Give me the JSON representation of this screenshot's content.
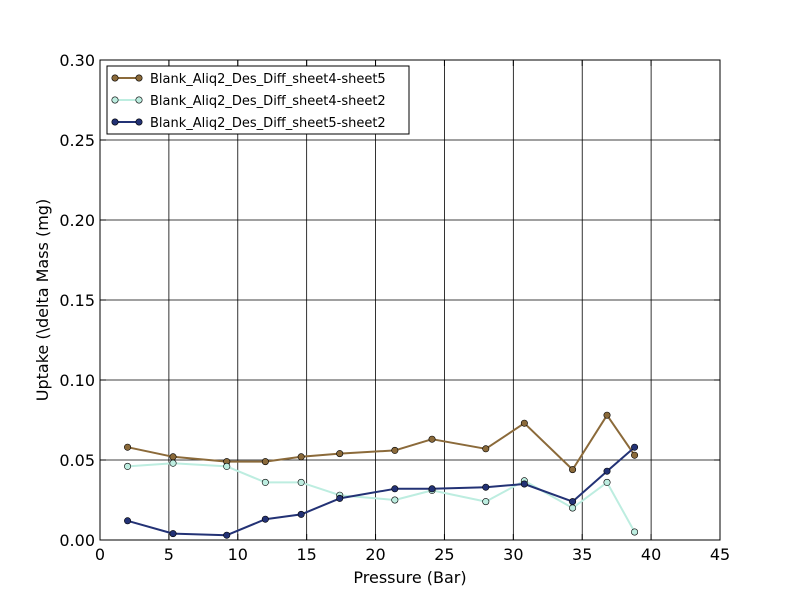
{
  "chart_data": {
    "type": "line",
    "title": "",
    "xlabel": "Pressure (Bar)",
    "ylabel": "Uptake (\\delta Mass (mg)",
    "xlim": [
      0,
      45
    ],
    "ylim": [
      0.0,
      0.3
    ],
    "xticks": [
      0,
      5,
      10,
      15,
      20,
      25,
      30,
      35,
      40,
      45
    ],
    "yticks": [
      0.0,
      0.05,
      0.1,
      0.15,
      0.2,
      0.25,
      0.3
    ],
    "xtick_labels": [
      "0",
      "5",
      "10",
      "15",
      "20",
      "25",
      "30",
      "35",
      "40",
      "45"
    ],
    "ytick_labels": [
      "0.00",
      "0.05",
      "0.10",
      "0.15",
      "0.20",
      "0.25",
      "0.30"
    ],
    "grid": true,
    "legend_position": "top-left",
    "series": [
      {
        "name": "Blank_Aliq2_Des_Diff_sheet4-sheet5",
        "color": "#8B6A3A",
        "marker_fill": "#8B6A3A",
        "x": [
          2.0,
          5.3,
          9.2,
          12.0,
          14.6,
          17.4,
          21.4,
          24.1,
          28.0,
          30.8,
          34.3,
          36.8,
          38.8
        ],
        "y": [
          0.058,
          0.052,
          0.049,
          0.049,
          0.052,
          0.054,
          0.056,
          0.063,
          0.057,
          0.073,
          0.044,
          0.078,
          0.053
        ]
      },
      {
        "name": "Blank_Aliq2_Des_Diff_sheet4-sheet2",
        "color": "#BDEDE0",
        "marker_fill": "#BDEDE0",
        "x": [
          2.0,
          5.3,
          9.2,
          12.0,
          14.6,
          17.4,
          21.4,
          24.1,
          28.0,
          30.8,
          34.3,
          36.8,
          38.8
        ],
        "y": [
          0.046,
          0.048,
          0.046,
          0.036,
          0.036,
          0.028,
          0.025,
          0.031,
          0.024,
          0.037,
          0.02,
          0.036,
          0.005
        ]
      },
      {
        "name": "Blank_Aliq2_Des_Diff_sheet5-sheet2",
        "color": "#233275",
        "marker_fill": "#233275",
        "x": [
          2.0,
          5.3,
          9.2,
          12.0,
          14.6,
          17.4,
          21.4,
          24.1,
          28.0,
          30.8,
          34.3,
          36.8,
          38.8
        ],
        "y": [
          0.012,
          0.004,
          0.003,
          0.013,
          0.016,
          0.026,
          0.032,
          0.032,
          0.033,
          0.035,
          0.024,
          0.043,
          0.058
        ]
      }
    ]
  }
}
